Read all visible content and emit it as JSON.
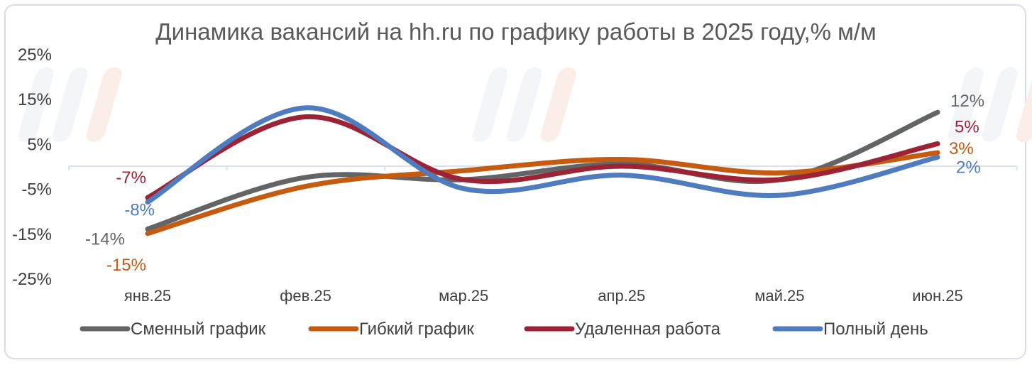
{
  "chart_data": {
    "type": "line",
    "title": "Динамика вакансий на hh.ru по графику работы в 2025 году,% м/м",
    "categories": [
      "янв.25",
      "фев.25",
      "мар.25",
      "апр.25",
      "май.25",
      "июн.25"
    ],
    "y_ticks": [
      "25%",
      "15%",
      "5%",
      "-5%",
      "-15%",
      "-25%"
    ],
    "ylim": [
      -25,
      25
    ],
    "smooth": true,
    "grid": false,
    "legend_position": "bottom",
    "series": [
      {
        "name": "Сменный график",
        "color": "#636466",
        "values": [
          -14,
          -2.5,
          -3,
          0.5,
          -3,
          12
        ],
        "labels": [
          {
            "index": 0,
            "text": "-14%"
          },
          {
            "index": 5,
            "text": "12%"
          }
        ]
      },
      {
        "name": "Гибкий график",
        "color": "#c55a11",
        "values": [
          -15,
          -4.5,
          -1,
          1.5,
          -1.5,
          3
        ],
        "labels": [
          {
            "index": 0,
            "text": "-15%"
          },
          {
            "index": 5,
            "text": "3%"
          }
        ]
      },
      {
        "name": "Удаленная работа",
        "color": "#9b2335",
        "values": [
          -7,
          11,
          -3,
          0,
          -3,
          5
        ],
        "labels": [
          {
            "index": 0,
            "text": "-7%"
          },
          {
            "index": 5,
            "text": "5%"
          }
        ]
      },
      {
        "name": "Полный день",
        "color": "#4f7cbf",
        "values": [
          -8,
          13,
          -5,
          -2,
          -6.5,
          2
        ],
        "labels": [
          {
            "index": 0,
            "text": "-8%"
          },
          {
            "index": 5,
            "text": "2%"
          }
        ]
      }
    ]
  }
}
